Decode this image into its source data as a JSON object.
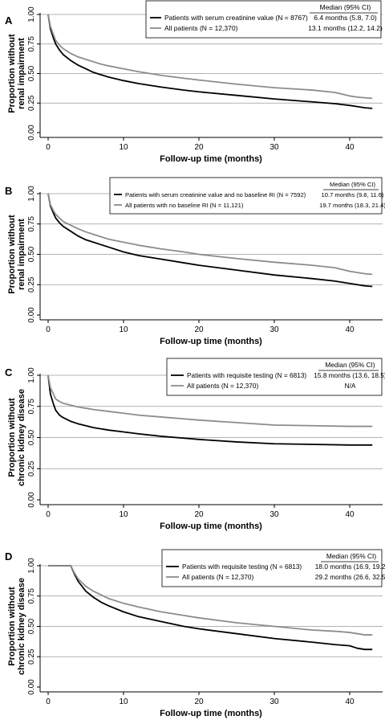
{
  "chart_data": [
    {
      "type": "line",
      "panel": "A",
      "xlabel": "Follow-up time (months)",
      "ylabel": [
        "Proportion without",
        "renal impairment"
      ],
      "xlim": [
        0,
        43
      ],
      "ylim": [
        0,
        1
      ],
      "xticks": [
        0,
        10,
        20,
        30,
        40
      ],
      "yticks": [
        0,
        0.25,
        0.5,
        0.75,
        1
      ],
      "ytick_labels": [
        "0.00",
        "0.25",
        "0.50",
        "0.75",
        "1.00"
      ],
      "grid": "horizontal",
      "legend_placement": "top-right",
      "legend_header": "Median (95% CI)",
      "series": [
        {
          "name": "Patients with serum creatinine value (N = 8767)",
          "median": "6.4 months (5.8, 7.0)",
          "color": "#000000",
          "x": [
            0,
            0.3,
            0.7,
            1,
            1.5,
            2,
            3,
            4,
            5,
            6,
            7,
            8,
            10,
            12,
            15,
            18,
            20,
            25,
            30,
            35,
            38,
            40,
            41,
            42,
            43
          ],
          "y": [
            1.0,
            0.88,
            0.8,
            0.75,
            0.7,
            0.66,
            0.61,
            0.57,
            0.54,
            0.51,
            0.49,
            0.47,
            0.44,
            0.415,
            0.385,
            0.36,
            0.345,
            0.315,
            0.285,
            0.26,
            0.245,
            0.23,
            0.22,
            0.21,
            0.205
          ]
        },
        {
          "name": "All patients (N = 12,370)",
          "median": "13.1 months (12.2, 14.2)",
          "color": "#8c8c8c",
          "x": [
            0,
            0.3,
            0.7,
            1,
            1.5,
            2,
            3,
            4,
            5,
            6,
            7,
            8,
            10,
            12,
            15,
            18,
            20,
            25,
            30,
            35,
            38,
            40,
            41,
            42,
            43
          ],
          "y": [
            1.0,
            0.9,
            0.83,
            0.78,
            0.74,
            0.71,
            0.67,
            0.64,
            0.62,
            0.6,
            0.58,
            0.565,
            0.54,
            0.515,
            0.485,
            0.46,
            0.445,
            0.41,
            0.38,
            0.36,
            0.34,
            0.31,
            0.3,
            0.295,
            0.29
          ]
        }
      ]
    },
    {
      "type": "line",
      "panel": "B",
      "xlabel": "Follow-up time (months)",
      "ylabel": [
        "Proportion without",
        "renal impairment"
      ],
      "xlim": [
        0,
        43
      ],
      "ylim": [
        0,
        1
      ],
      "xticks": [
        0,
        10,
        20,
        30,
        40
      ],
      "yticks": [
        0,
        0.25,
        0.5,
        0.75,
        1
      ],
      "ytick_labels": [
        "0.00",
        "0.25",
        "0.50",
        "0.75",
        "1.00"
      ],
      "grid": "horizontal",
      "legend_placement": "top-right",
      "legend_header": "Median (95% CI)",
      "series": [
        {
          "name": "Patients with serum creatinine value and no baseline RI (N = 7592)",
          "median": "10.7 months (9.8, 11.6)",
          "color": "#000000",
          "x": [
            0,
            0.3,
            0.7,
            1,
            1.5,
            2,
            3,
            4,
            5,
            6,
            7,
            8,
            10,
            12,
            15,
            18,
            20,
            25,
            30,
            35,
            38,
            40,
            41,
            42,
            43
          ],
          "y": [
            1.0,
            0.9,
            0.84,
            0.8,
            0.76,
            0.73,
            0.69,
            0.65,
            0.62,
            0.6,
            0.58,
            0.56,
            0.52,
            0.49,
            0.46,
            0.43,
            0.41,
            0.37,
            0.33,
            0.3,
            0.28,
            0.26,
            0.25,
            0.24,
            0.235
          ]
        },
        {
          "name": "All patients with no baseline RI (N = 11,121)",
          "median": "19.7 months (18.3, 21.4)",
          "color": "#8c8c8c",
          "x": [
            0,
            0.3,
            0.7,
            1,
            1.5,
            2,
            3,
            4,
            5,
            6,
            7,
            8,
            10,
            12,
            15,
            18,
            20,
            25,
            30,
            35,
            38,
            40,
            41,
            42,
            43
          ],
          "y": [
            1.0,
            0.91,
            0.86,
            0.83,
            0.8,
            0.77,
            0.74,
            0.71,
            0.685,
            0.665,
            0.645,
            0.625,
            0.6,
            0.575,
            0.545,
            0.52,
            0.5,
            0.465,
            0.435,
            0.41,
            0.39,
            0.36,
            0.35,
            0.34,
            0.335
          ]
        }
      ]
    },
    {
      "type": "line",
      "panel": "C",
      "xlabel": "Follow-up time (months)",
      "ylabel": [
        "Proportion without",
        "chronic kidney disease"
      ],
      "xlim": [
        0,
        43
      ],
      "ylim": [
        0,
        1
      ],
      "xticks": [
        0,
        10,
        20,
        30,
        40
      ],
      "yticks": [
        0,
        0.25,
        0.5,
        0.75,
        1
      ],
      "ytick_labels": [
        "0.00",
        "0.25",
        "0.50",
        "0.75",
        "1.00"
      ],
      "grid": "horizontal",
      "legend_placement": "top-right",
      "legend_header": "Median (95% CI)",
      "series": [
        {
          "name": "Patients with requisite testing (N = 6813)",
          "median": "15.8 months (13.6, 18.5)",
          "color": "#000000",
          "x": [
            0,
            0.3,
            0.7,
            1,
            1.5,
            2,
            3,
            4,
            5,
            6,
            8,
            10,
            12,
            15,
            18,
            20,
            25,
            30,
            35,
            40,
            43
          ],
          "y": [
            1.0,
            0.85,
            0.77,
            0.72,
            0.68,
            0.66,
            0.63,
            0.61,
            0.595,
            0.58,
            0.56,
            0.545,
            0.53,
            0.51,
            0.495,
            0.485,
            0.465,
            0.45,
            0.445,
            0.44,
            0.44
          ]
        },
        {
          "name": "All patients (N = 12,370)",
          "median": "N/A",
          "color": "#8c8c8c",
          "x": [
            0,
            0.3,
            0.7,
            1,
            1.5,
            2,
            3,
            4,
            5,
            6,
            8,
            10,
            12,
            15,
            18,
            20,
            25,
            30,
            35,
            40,
            43
          ],
          "y": [
            1.0,
            0.9,
            0.85,
            0.81,
            0.79,
            0.775,
            0.76,
            0.745,
            0.735,
            0.725,
            0.71,
            0.695,
            0.68,
            0.665,
            0.65,
            0.64,
            0.62,
            0.6,
            0.595,
            0.59,
            0.59
          ]
        }
      ]
    },
    {
      "type": "line",
      "panel": "D",
      "xlabel": "Follow-up time (months)",
      "ylabel": [
        "Proportion without",
        "chronic kidney disease"
      ],
      "xlim": [
        0,
        43
      ],
      "ylim": [
        0,
        1
      ],
      "xticks": [
        0,
        10,
        20,
        30,
        40
      ],
      "yticks": [
        0,
        0.25,
        0.5,
        0.75,
        1
      ],
      "ytick_labels": [
        "0.00",
        "0.25",
        "0.50",
        "0.75",
        "1.00"
      ],
      "grid": "horizontal",
      "legend_placement": "top-right",
      "legend_header": "Median (95% CI)",
      "series": [
        {
          "name": "Patients with requisite testing (N = 6813)",
          "median": "18.0 months (16.9, 19.2)",
          "color": "#000000",
          "x": [
            0,
            3,
            3.5,
            4,
            5,
            6,
            7,
            8,
            10,
            12,
            15,
            18,
            20,
            25,
            30,
            35,
            38,
            40,
            41,
            42,
            43
          ],
          "y": [
            1.0,
            1.0,
            0.93,
            0.87,
            0.79,
            0.74,
            0.7,
            0.67,
            0.62,
            0.58,
            0.54,
            0.5,
            0.48,
            0.44,
            0.4,
            0.37,
            0.35,
            0.34,
            0.32,
            0.31,
            0.31
          ]
        },
        {
          "name": "All patients (N = 12,370)",
          "median": "29.2 months (26.6, 32.5)",
          "color": "#8c8c8c",
          "x": [
            0,
            3,
            3.5,
            4,
            5,
            6,
            7,
            8,
            10,
            12,
            15,
            18,
            20,
            25,
            30,
            35,
            38,
            40,
            41,
            42,
            43
          ],
          "y": [
            1.0,
            1.0,
            0.94,
            0.89,
            0.83,
            0.79,
            0.76,
            0.73,
            0.69,
            0.66,
            0.62,
            0.59,
            0.57,
            0.53,
            0.5,
            0.47,
            0.46,
            0.45,
            0.44,
            0.43,
            0.43
          ]
        }
      ]
    }
  ]
}
